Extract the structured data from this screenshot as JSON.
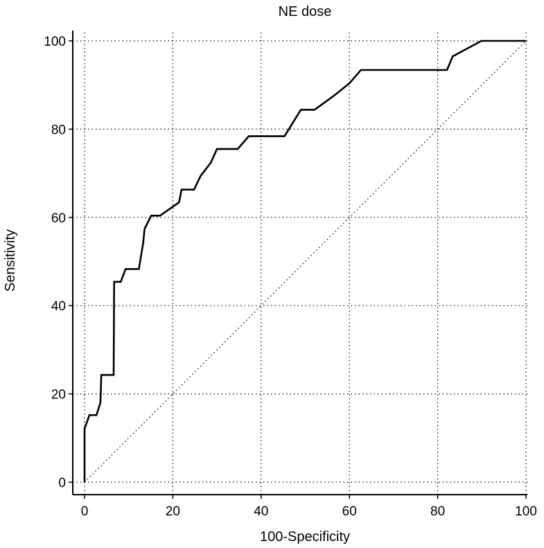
{
  "chart_data": {
    "type": "line",
    "title": "NE dose",
    "xlabel": "100-Specificity",
    "ylabel": "Sensitivity",
    "xlim": [
      0,
      100
    ],
    "ylim": [
      0,
      100
    ],
    "x_ticks": [
      "0",
      "20",
      "40",
      "60",
      "80",
      "100"
    ],
    "y_ticks": [
      "0",
      "20",
      "40",
      "60",
      "80",
      "100"
    ],
    "grid": "dotted",
    "series": [
      {
        "style": "solid",
        "color": "#000000",
        "points": [
          [
            0,
            0
          ],
          [
            0,
            12.1
          ],
          [
            1.1,
            15.2
          ],
          [
            2.7,
            15.2
          ],
          [
            3.6,
            18
          ],
          [
            3.8,
            24.3
          ],
          [
            6.6,
            24.3
          ],
          [
            6.7,
            45.4
          ],
          [
            8.2,
            45.4
          ],
          [
            9.3,
            48.3
          ],
          [
            12.3,
            48.3
          ],
          [
            13.3,
            54.3
          ],
          [
            13.6,
            57.4
          ],
          [
            15.1,
            60.4
          ],
          [
            17.1,
            60.4
          ],
          [
            21.4,
            63.4
          ],
          [
            22,
            66.3
          ],
          [
            24.8,
            66.3
          ],
          [
            26.3,
            69.4
          ],
          [
            28.6,
            72.4
          ],
          [
            30,
            75.5
          ],
          [
            34.7,
            75.5
          ],
          [
            37.2,
            78.4
          ],
          [
            45.3,
            78.4
          ],
          [
            49,
            84.4
          ],
          [
            52.1,
            84.4
          ],
          [
            56.4,
            87.5
          ],
          [
            60,
            90.4
          ],
          [
            62.6,
            93.4
          ],
          [
            82.1,
            93.4
          ],
          [
            83.4,
            96.5
          ],
          [
            89.9,
            100
          ],
          [
            100,
            100
          ]
        ]
      },
      {
        "style": "dotted",
        "color": "#000000",
        "points": [
          [
            0,
            0
          ],
          [
            100,
            100
          ]
        ]
      }
    ]
  }
}
